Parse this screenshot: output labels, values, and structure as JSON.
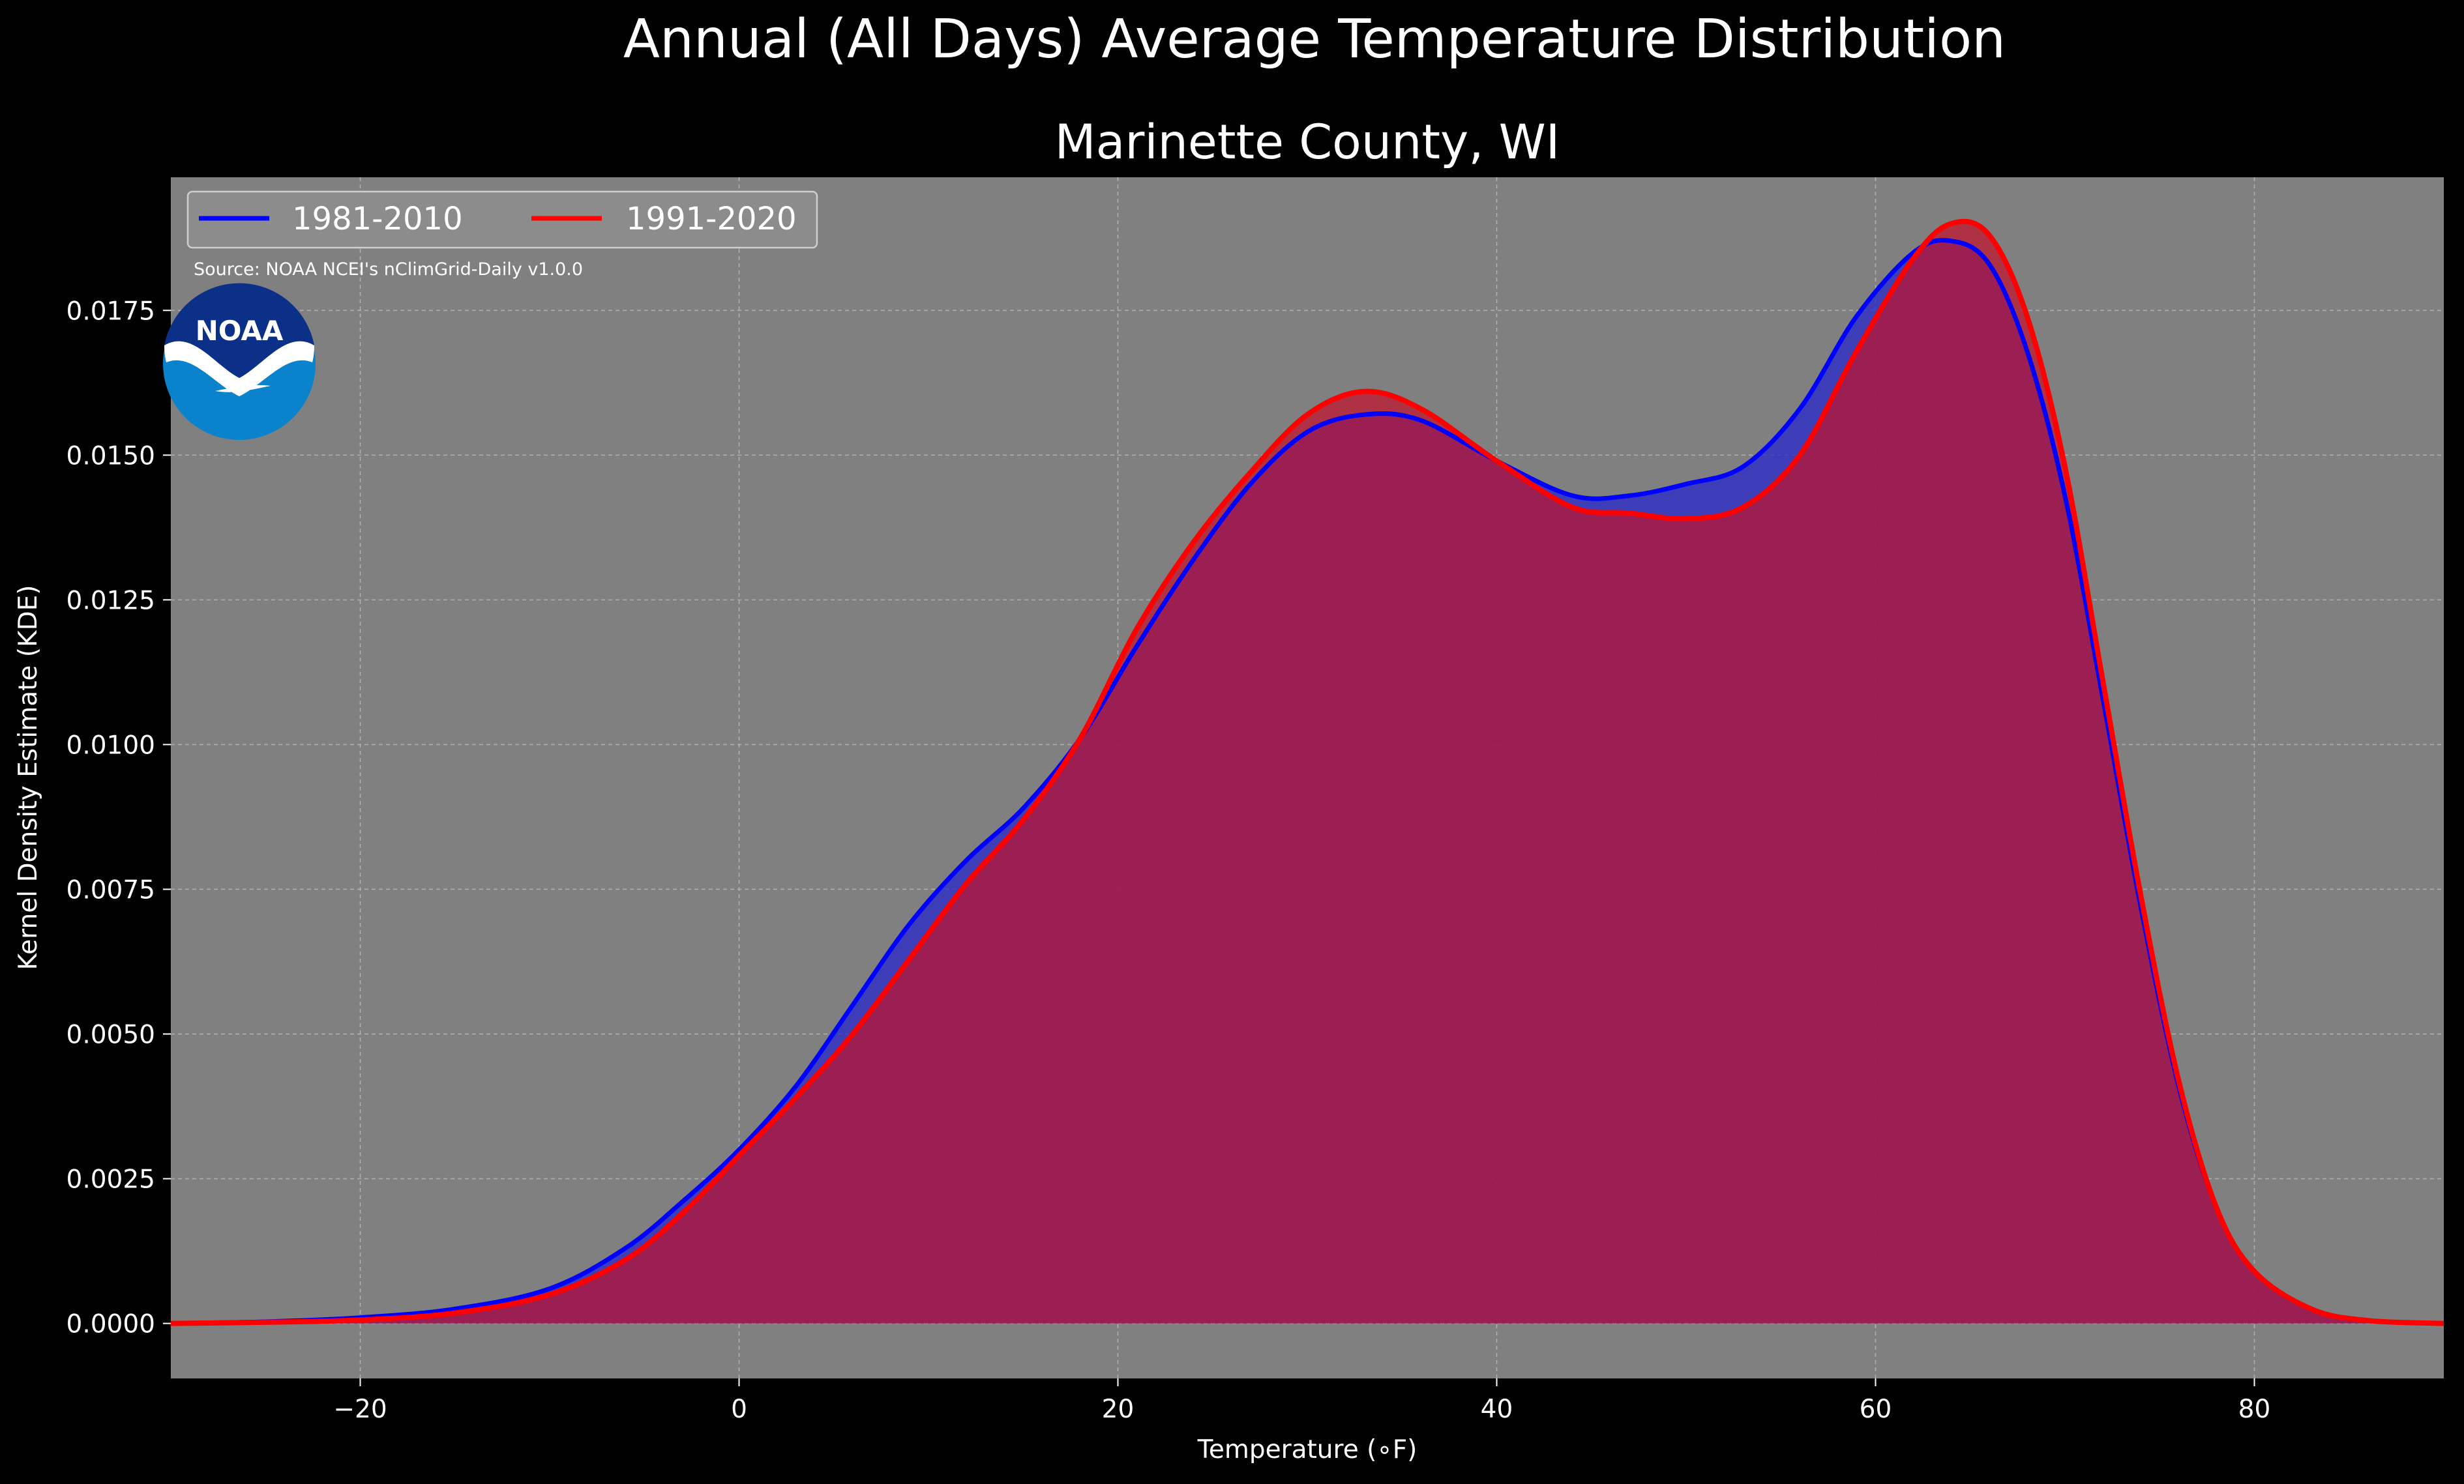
{
  "chart_data": {
    "type": "area",
    "title": "Annual (All Days) Average Temperature Distribution",
    "subtitle": "Marinette County, WI",
    "xlabel": "Temperature ($^\\circ$F)",
    "xlabel_display": "Temperature (∘F)",
    "ylabel": "Kernel Density Estimate (KDE)",
    "xlim": [
      -30,
      90
    ],
    "ylim": [
      -0.00095,
      0.0198
    ],
    "x_ticks": [
      -20,
      0,
      20,
      40,
      60,
      80
    ],
    "x_tick_labels": [
      "−20",
      "0",
      "20",
      "40",
      "60",
      "80"
    ],
    "y_ticks": [
      0.0,
      0.0025,
      0.005,
      0.0075,
      0.01,
      0.0125,
      0.015,
      0.0175
    ],
    "y_tick_labels": [
      "0.0000",
      "0.0025",
      "0.0050",
      "0.0075",
      "0.0100",
      "0.0125",
      "0.0150",
      "0.0175"
    ],
    "grid": true,
    "legend_position": "top-left",
    "plot_background": "#808080",
    "figure_background": "#000000",
    "annotation": "Source: NOAA NCEI's nClimGrid-Daily v1.0.0",
    "logo_text": "NOAA",
    "series": [
      {
        "name": "1981-2010",
        "color": "#0000ff",
        "fill": "#2222cc",
        "x": [
          -30,
          -25,
          -20,
          -15,
          -10,
          -6,
          -3,
          0,
          3,
          6,
          9,
          12,
          15,
          18,
          21,
          24,
          27,
          30,
          33,
          36,
          40,
          44,
          47,
          50,
          53,
          56,
          59,
          62,
          64,
          66,
          68,
          70,
          72,
          74,
          76,
          78,
          80,
          83,
          86,
          90
        ],
        "y": [
          0.0,
          3e-05,
          0.0001,
          0.00025,
          0.0006,
          0.0013,
          0.0021,
          0.003,
          0.0041,
          0.0055,
          0.0069,
          0.008,
          0.0089,
          0.0101,
          0.0117,
          0.0132,
          0.0145,
          0.0154,
          0.0157,
          0.0156,
          0.0149,
          0.0143,
          0.0143,
          0.0145,
          0.0148,
          0.0158,
          0.0174,
          0.0185,
          0.0187,
          0.0183,
          0.0168,
          0.0143,
          0.0108,
          0.0072,
          0.0041,
          0.002,
          0.0009,
          0.00025,
          5e-05,
          0.0
        ]
      },
      {
        "name": "1991-2020",
        "color": "#ff0000",
        "fill": "#c0142c",
        "x": [
          -30,
          -25,
          -20,
          -15,
          -10,
          -6,
          -3,
          0,
          3,
          6,
          9,
          12,
          15,
          18,
          21,
          24,
          27,
          30,
          33,
          36,
          40,
          44,
          47,
          50,
          53,
          56,
          59,
          62,
          64,
          66,
          68,
          70,
          72,
          74,
          76,
          78,
          80,
          83,
          86,
          90
        ],
        "y": [
          0.0,
          2e-05,
          6e-05,
          0.00018,
          0.0005,
          0.0011,
          0.0019,
          0.0029,
          0.0039,
          0.005,
          0.0063,
          0.0076,
          0.0087,
          0.0101,
          0.012,
          0.0135,
          0.0147,
          0.0157,
          0.0161,
          0.0158,
          0.0149,
          0.0141,
          0.014,
          0.0139,
          0.0141,
          0.015,
          0.0168,
          0.0184,
          0.019,
          0.0188,
          0.0174,
          0.0148,
          0.0111,
          0.0074,
          0.0042,
          0.002,
          0.0009,
          0.00025,
          5e-05,
          0.0
        ]
      }
    ]
  }
}
